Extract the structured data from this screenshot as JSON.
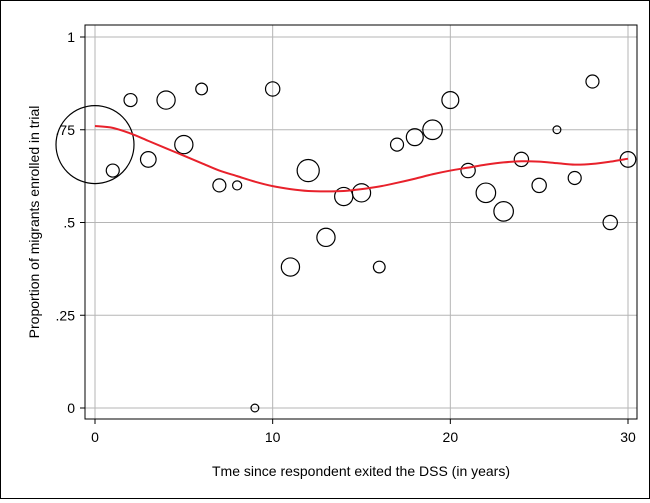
{
  "chart_data": {
    "type": "scatter",
    "xlabel": "Tme since respondent exited the DSS (in years)",
    "ylabel": "Proportion of migrants enrolled in trial",
    "xlim": [
      0,
      30
    ],
    "ylim": [
      0,
      1
    ],
    "x_ticks": [
      0,
      10,
      20,
      30
    ],
    "x_tick_labels": [
      "0",
      "10",
      "20",
      "30"
    ],
    "y_ticks": [
      0,
      0.25,
      0.5,
      0.75,
      1
    ],
    "y_tick_labels": [
      "0",
      ".25",
      ".5",
      ".75",
      "1"
    ],
    "grid": true,
    "legend": "none",
    "marker_style": "hollow circles, size proportional to weight",
    "colors": {
      "points": "#000000",
      "fit_line": "#e8212b",
      "grid": "#b5b5b5"
    },
    "points": [
      {
        "x": 0,
        "y": 0.71,
        "size": 6.0
      },
      {
        "x": 1,
        "y": 0.64,
        "size": 1.0
      },
      {
        "x": 2,
        "y": 0.83,
        "size": 1.0
      },
      {
        "x": 3,
        "y": 0.67,
        "size": 1.2
      },
      {
        "x": 4,
        "y": 0.83,
        "size": 1.4
      },
      {
        "x": 5,
        "y": 0.71,
        "size": 1.4
      },
      {
        "x": 6,
        "y": 0.86,
        "size": 0.9
      },
      {
        "x": 7,
        "y": 0.6,
        "size": 1.0
      },
      {
        "x": 8,
        "y": 0.6,
        "size": 0.7
      },
      {
        "x": 9,
        "y": 0.0,
        "size": 0.6
      },
      {
        "x": 10,
        "y": 0.86,
        "size": 1.1
      },
      {
        "x": 11,
        "y": 0.38,
        "size": 1.4
      },
      {
        "x": 12,
        "y": 0.64,
        "size": 1.7
      },
      {
        "x": 13,
        "y": 0.46,
        "size": 1.4
      },
      {
        "x": 14,
        "y": 0.57,
        "size": 1.4
      },
      {
        "x": 15,
        "y": 0.58,
        "size": 1.4
      },
      {
        "x": 16,
        "y": 0.38,
        "size": 0.9
      },
      {
        "x": 17,
        "y": 0.71,
        "size": 1.0
      },
      {
        "x": 18,
        "y": 0.73,
        "size": 1.3
      },
      {
        "x": 19,
        "y": 0.75,
        "size": 1.5
      },
      {
        "x": 20,
        "y": 0.83,
        "size": 1.3
      },
      {
        "x": 21,
        "y": 0.64,
        "size": 1.1
      },
      {
        "x": 22,
        "y": 0.58,
        "size": 1.5
      },
      {
        "x": 23,
        "y": 0.53,
        "size": 1.5
      },
      {
        "x": 24,
        "y": 0.67,
        "size": 1.1
      },
      {
        "x": 25,
        "y": 0.6,
        "size": 1.1
      },
      {
        "x": 26,
        "y": 0.75,
        "size": 0.6
      },
      {
        "x": 27,
        "y": 0.62,
        "size": 1.0
      },
      {
        "x": 28,
        "y": 0.88,
        "size": 1.0
      },
      {
        "x": 29,
        "y": 0.5,
        "size": 1.1
      },
      {
        "x": 30,
        "y": 0.67,
        "size": 1.2
      }
    ],
    "fit_line": [
      {
        "x": 0,
        "y": 0.76
      },
      {
        "x": 1,
        "y": 0.755
      },
      {
        "x": 2,
        "y": 0.74
      },
      {
        "x": 3,
        "y": 0.72
      },
      {
        "x": 4,
        "y": 0.7
      },
      {
        "x": 5,
        "y": 0.68
      },
      {
        "x": 6,
        "y": 0.66
      },
      {
        "x": 7,
        "y": 0.64
      },
      {
        "x": 8,
        "y": 0.625
      },
      {
        "x": 9,
        "y": 0.61
      },
      {
        "x": 10,
        "y": 0.598
      },
      {
        "x": 11,
        "y": 0.59
      },
      {
        "x": 12,
        "y": 0.585
      },
      {
        "x": 13,
        "y": 0.584
      },
      {
        "x": 14,
        "y": 0.585
      },
      {
        "x": 15,
        "y": 0.59
      },
      {
        "x": 16,
        "y": 0.597
      },
      {
        "x": 17,
        "y": 0.607
      },
      {
        "x": 18,
        "y": 0.618
      },
      {
        "x": 19,
        "y": 0.63
      },
      {
        "x": 20,
        "y": 0.64
      },
      {
        "x": 21,
        "y": 0.648
      },
      {
        "x": 22,
        "y": 0.656
      },
      {
        "x": 23,
        "y": 0.662
      },
      {
        "x": 24,
        "y": 0.665
      },
      {
        "x": 25,
        "y": 0.664
      },
      {
        "x": 26,
        "y": 0.66
      },
      {
        "x": 27,
        "y": 0.656
      },
      {
        "x": 28,
        "y": 0.658
      },
      {
        "x": 29,
        "y": 0.664
      },
      {
        "x": 30,
        "y": 0.672
      }
    ]
  }
}
